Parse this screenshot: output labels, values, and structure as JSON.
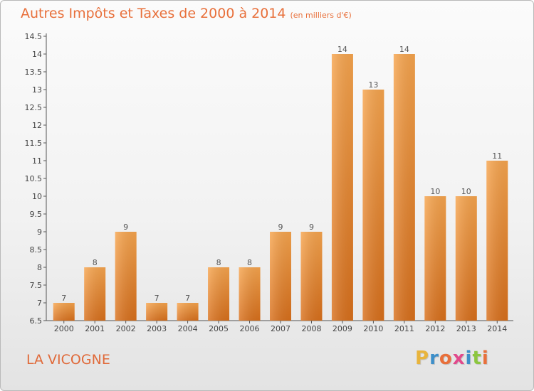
{
  "chart_data": {
    "type": "bar",
    "title": "Autres Impôts et Taxes de 2000 à 2014",
    "subtitle": "(en milliers d'€)",
    "categories": [
      "2000",
      "2001",
      "2002",
      "2003",
      "2004",
      "2005",
      "2006",
      "2007",
      "2008",
      "2009",
      "2010",
      "2011",
      "2012",
      "2013",
      "2014"
    ],
    "values": [
      7,
      8,
      9,
      7,
      7,
      8,
      8,
      9,
      9,
      14,
      13,
      14,
      10,
      10,
      11
    ],
    "value_labels": [
      "7",
      "8",
      "9",
      "7",
      "7",
      "8",
      "8",
      "9",
      "9",
      "14",
      "13",
      "14",
      "10",
      "10",
      "11"
    ],
    "ylim": [
      6.5,
      14.5
    ],
    "yticks": [
      "6.5",
      "7",
      "7.5",
      "8",
      "8.5",
      "9",
      "9.5",
      "10",
      "10.5",
      "11",
      "11.5",
      "12",
      "12.5",
      "13",
      "13.5",
      "14",
      "14.5"
    ],
    "xlabel": "",
    "ylabel": "",
    "grid": false,
    "bar_color": "#f0943f"
  },
  "footer": {
    "place": "LA VICOGNE",
    "logo_letters": [
      "P",
      "r",
      "o",
      "x",
      "i",
      "t",
      "i"
    ],
    "logo_colors": [
      "#e8b43c",
      "#3d8fc9",
      "#e8703b",
      "#e14a8c",
      "#3d8fc9",
      "#8cc63f",
      "#e8703b"
    ]
  }
}
